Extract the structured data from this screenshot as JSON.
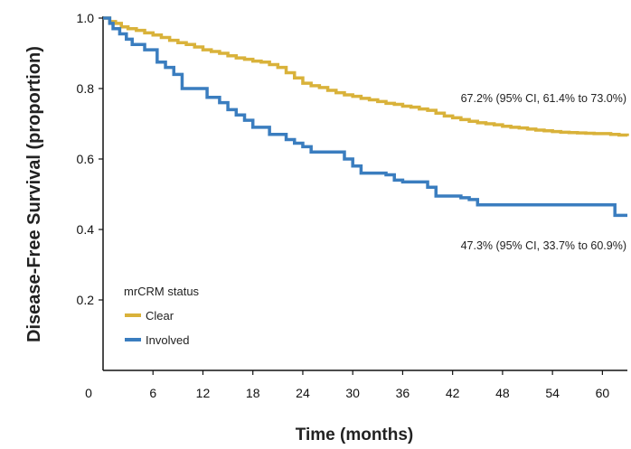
{
  "chart_data": {
    "type": "line",
    "subtype": "step",
    "xlabel": "Time (months)",
    "ylabel": "Disease-Free Survival (proportion)",
    "xlim": [
      0,
      63
    ],
    "ylim": [
      0,
      1.0
    ],
    "xticks": [
      0,
      6,
      12,
      18,
      24,
      30,
      36,
      42,
      48,
      54,
      60
    ],
    "yticks": [
      0.2,
      0.4,
      0.6,
      0.8,
      1.0
    ],
    "ytick_labels": [
      "0.2",
      "0.4",
      "0.6",
      "0.8",
      "1.0"
    ],
    "grid": false,
    "legend": {
      "title": "mrCRM status",
      "placement": "lower-left",
      "entries": [
        "Clear",
        "Involved"
      ]
    },
    "series": [
      {
        "name": "Clear",
        "color": "#D9B23A",
        "x": [
          0,
          0.8,
          1.5,
          2.2,
          3,
          4,
          5,
          6,
          7,
          8,
          9,
          10,
          11,
          12,
          13,
          14,
          15,
          16,
          17,
          18,
          19,
          20,
          21,
          22,
          23,
          24,
          25,
          26,
          27,
          28,
          29,
          30,
          31,
          32,
          33,
          34,
          35,
          36,
          37,
          38,
          39,
          40,
          41,
          42,
          43,
          44,
          45,
          46,
          47,
          48,
          49,
          50,
          51,
          52,
          53,
          54,
          55,
          56,
          57,
          58,
          59,
          60,
          61,
          62,
          63
        ],
        "y": [
          1.0,
          0.99,
          0.985,
          0.975,
          0.97,
          0.965,
          0.958,
          0.952,
          0.945,
          0.937,
          0.93,
          0.925,
          0.918,
          0.91,
          0.905,
          0.9,
          0.893,
          0.887,
          0.883,
          0.878,
          0.875,
          0.868,
          0.86,
          0.845,
          0.83,
          0.815,
          0.808,
          0.803,
          0.795,
          0.788,
          0.782,
          0.778,
          0.772,
          0.768,
          0.763,
          0.758,
          0.755,
          0.75,
          0.747,
          0.742,
          0.738,
          0.73,
          0.722,
          0.717,
          0.712,
          0.707,
          0.703,
          0.7,
          0.697,
          0.693,
          0.69,
          0.688,
          0.685,
          0.682,
          0.68,
          0.678,
          0.676,
          0.675,
          0.674,
          0.673,
          0.672,
          0.672,
          0.67,
          0.668,
          0.665
        ]
      },
      {
        "name": "Involved",
        "color": "#3A7DBF",
        "x": [
          0,
          0.8,
          1.2,
          2,
          2.8,
          3.5,
          5,
          6.5,
          7.5,
          8.5,
          9.5,
          12.5,
          14,
          15,
          16,
          17,
          18,
          19,
          20,
          22,
          23,
          24,
          25,
          26,
          27,
          28,
          29,
          30,
          31,
          32,
          33,
          34,
          35,
          36,
          37,
          38,
          39,
          40,
          41,
          42,
          43,
          44,
          45,
          50,
          55,
          60,
          61.5,
          63
        ],
        "y": [
          1.0,
          0.985,
          0.97,
          0.955,
          0.94,
          0.925,
          0.91,
          0.875,
          0.86,
          0.84,
          0.8,
          0.775,
          0.76,
          0.74,
          0.725,
          0.71,
          0.69,
          0.69,
          0.67,
          0.655,
          0.645,
          0.635,
          0.62,
          0.62,
          0.62,
          0.62,
          0.6,
          0.58,
          0.56,
          0.56,
          0.56,
          0.555,
          0.54,
          0.535,
          0.535,
          0.535,
          0.52,
          0.495,
          0.495,
          0.495,
          0.49,
          0.485,
          0.47,
          0.47,
          0.47,
          0.47,
          0.44,
          0.44
        ]
      }
    ],
    "annotations": [
      {
        "text": "67.2% (95% CI, 61.4% to 73.0%)",
        "series": "Clear"
      },
      {
        "text": "47.3% (95% CI, 33.7% to 60.9%)",
        "series": "Involved"
      }
    ]
  }
}
